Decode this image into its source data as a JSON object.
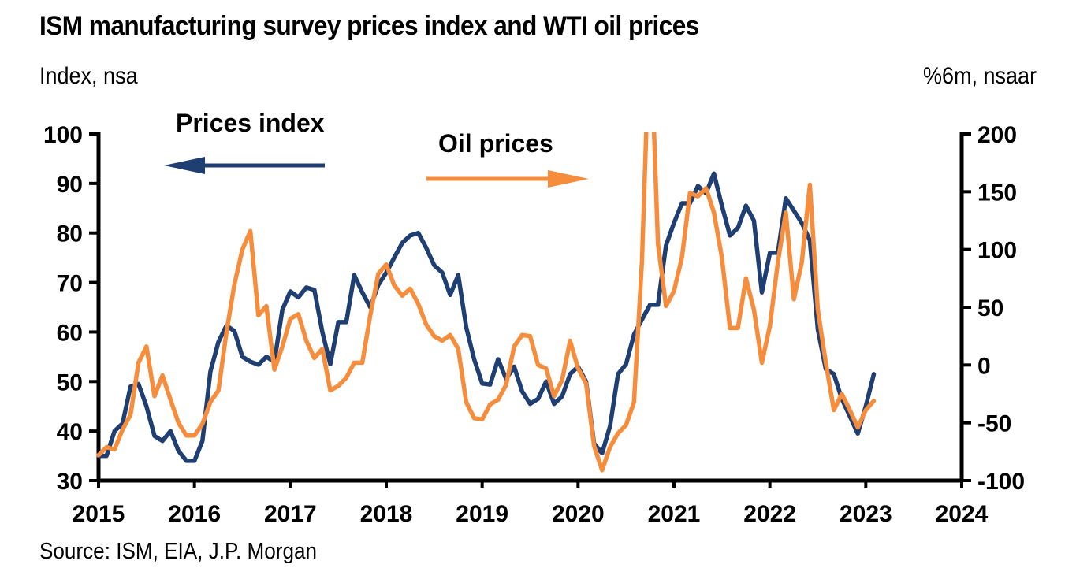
{
  "header": {
    "title": "ISM manufacturing survey prices index and WTI oil prices",
    "left_unit": "Index, nsa",
    "right_unit": "%6m, nsaar"
  },
  "footer": {
    "source": "Source: ISM, EIA, J.P. Morgan"
  },
  "colors": {
    "prices_index": "#1f3f73",
    "oil_prices": "#f68d3c",
    "axis": "#000000"
  },
  "chart_data": {
    "type": "line",
    "title": "ISM manufacturing survey prices index and WTI oil prices",
    "xlabel": "",
    "ylabel": "Index, nsa",
    "y2label": "%6m, nsaar",
    "x_start": "2015-01",
    "x_frequency": "monthly",
    "x_ticks": [
      "2015",
      "2016",
      "2017",
      "2018",
      "2019",
      "2020",
      "2021",
      "2022",
      "2023",
      "2024"
    ],
    "xlim": [
      "2015-01",
      "2024-01"
    ],
    "ylim": [
      30,
      100
    ],
    "y_ticks": [
      "30",
      "40",
      "50",
      "60",
      "70",
      "80",
      "90",
      "100"
    ],
    "y2lim": [
      -100,
      200
    ],
    "y2_ticks": [
      "-100",
      "-50",
      "0",
      "50",
      "100",
      "150",
      "200"
    ],
    "grid": false,
    "legend": "inline annotations with arrows (top-left: Prices index → left axis; top-center: Oil prices → right axis)",
    "annotations": [
      {
        "text": "Prices index",
        "series": "Prices index",
        "arrow": "left",
        "color": "#1f3f73"
      },
      {
        "text": "Oil prices",
        "series": "Oil prices",
        "arrow": "right",
        "color": "#f68d3c"
      }
    ],
    "series": [
      {
        "name": "Prices index",
        "axis": "left",
        "color": "#1f3f73",
        "values": [
          35,
          35,
          40,
          41.5,
          49,
          49.5,
          45,
          39,
          38,
          40,
          36,
          34,
          34,
          38,
          52,
          58,
          61.3,
          60.2,
          55,
          54,
          53.4,
          55,
          54,
          64.5,
          68.2,
          67,
          69,
          68.5,
          60,
          53.5,
          62,
          62,
          71.5,
          68,
          65,
          69.5,
          72,
          75,
          78,
          79.5,
          80,
          77,
          73.5,
          72,
          67.5,
          71.5,
          61,
          54.5,
          49.6,
          49.4,
          54.5,
          50.5,
          53,
          48,
          45.5,
          46.5,
          50,
          45.5,
          47,
          51.5,
          53,
          50,
          37.5,
          35.5,
          41,
          51.5,
          53.5,
          59.5,
          62.5,
          65.5,
          65.5,
          77.5,
          82,
          86,
          86,
          89.5,
          88,
          92,
          85.5,
          79.5,
          81,
          85.5,
          82.5,
          68,
          76,
          76,
          87,
          84.5,
          82,
          78.5,
          60.5,
          52.5,
          51.5,
          46.5,
          43,
          39.5,
          45,
          51.5
        ]
      },
      {
        "name": "Oil prices",
        "axis": "right",
        "color": "#f68d3c",
        "clipped_above_axis_max": [
          "2020-10"
        ],
        "values": [
          -78,
          -71,
          -73,
          -56,
          -43,
          2,
          16,
          -27,
          -9,
          -30,
          -50,
          -61,
          -61,
          -51,
          -32,
          -22,
          28,
          70,
          100,
          116,
          43,
          51,
          -4,
          16,
          40,
          44,
          21,
          6,
          14,
          -22,
          -18,
          -11,
          2,
          2,
          43,
          79,
          87,
          69,
          60,
          66,
          53,
          35,
          25,
          21,
          26,
          14,
          -32,
          -46,
          -47,
          -34,
          -30,
          -17,
          16,
          26,
          25,
          0,
          -3,
          -27,
          -13,
          21,
          -3,
          -16,
          -70,
          -91,
          -71,
          -59,
          -52,
          -32,
          90,
          300,
          105,
          51,
          64,
          93,
          149,
          146,
          153,
          132,
          93,
          32,
          32,
          75,
          48,
          2,
          34,
          89,
          132,
          57,
          89,
          156,
          48,
          2,
          -39,
          -25,
          -39,
          -54,
          -39,
          -31
        ]
      }
    ]
  }
}
